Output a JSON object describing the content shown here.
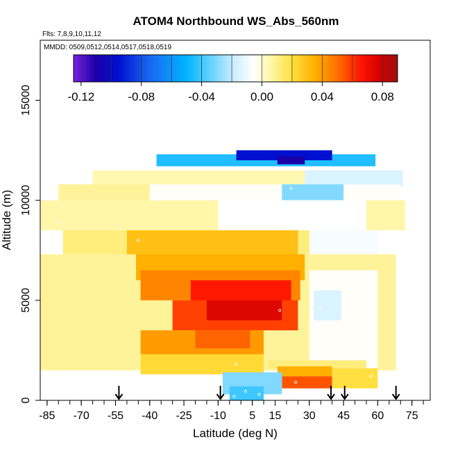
{
  "chart_data": {
    "type": "heatmap",
    "title": "ATOM4 Northbound WS_Abs_560nm",
    "subtitle": "Flts: 7,8,9,10,11,12",
    "annotation": "MMDD: 0509,0512,0514,0517,0518,0519",
    "xlabel": "Latitude (deg N)",
    "ylabel": "Altitude (m)",
    "xlim": [
      -88,
      83
    ],
    "ylim": [
      0,
      18000
    ],
    "x_ticks": [
      -85,
      -70,
      -55,
      -40,
      -25,
      -10,
      5,
      15,
      30,
      45,
      60,
      75
    ],
    "x_minor_step": 5,
    "y_ticks": [
      0,
      5000,
      10000,
      15000
    ],
    "colorbar": {
      "range": [
        -0.125,
        0.09
      ],
      "ticks": [
        -0.12,
        -0.08,
        -0.04,
        0.0,
        0.04,
        0.08
      ],
      "tick_labels": [
        "-0.12",
        "-0.08",
        "-0.04",
        "0.00",
        "0.04",
        "0.08"
      ],
      "stops": [
        [
          -0.125,
          "#7a1fe6"
        ],
        [
          -0.11,
          "#1a00a8"
        ],
        [
          -0.095,
          "#0010d0"
        ],
        [
          -0.075,
          "#1a66f0"
        ],
        [
          -0.05,
          "#00b4ff"
        ],
        [
          -0.035,
          "#5fd0ff"
        ],
        [
          -0.02,
          "#c4ecff"
        ],
        [
          -0.006,
          "#ffffff"
        ],
        [
          0.005,
          "#fff8b0"
        ],
        [
          0.02,
          "#ffe040"
        ],
        [
          0.035,
          "#ffb000"
        ],
        [
          0.05,
          "#ff7000"
        ],
        [
          0.065,
          "#ff1800"
        ],
        [
          0.078,
          "#d40000"
        ],
        [
          0.09,
          "#9a1010"
        ]
      ]
    },
    "sounding_latitudes": [
      -53.5,
      -9,
      39.5,
      45.5,
      68
    ],
    "cells": [
      {
        "x": [
          -37,
          59
        ],
        "y": [
          11700,
          12300
        ],
        "v": -0.045
      },
      {
        "x": [
          -2,
          40
        ],
        "y": [
          12000,
          12500
        ],
        "v": -0.095
      },
      {
        "x": [
          16,
          28
        ],
        "y": [
          11800,
          12200
        ],
        "v": -0.11
      },
      {
        "x": [
          -65,
          71
        ],
        "y": [
          10700,
          11500
        ],
        "v": 0.005
      },
      {
        "x": [
          28,
          71
        ],
        "y": [
          10700,
          11500
        ],
        "v": -0.015
      },
      {
        "x": [
          -80,
          -40
        ],
        "y": [
          10000,
          10800
        ],
        "v": 0.008
      },
      {
        "x": [
          -40,
          70
        ],
        "y": [
          10000,
          10800
        ],
        "v": -0.005
      },
      {
        "x": [
          18,
          45
        ],
        "y": [
          10000,
          10800
        ],
        "v": -0.03
      },
      {
        "x": [
          -88,
          72
        ],
        "y": [
          8500,
          10000
        ],
        "v": 0.006
      },
      {
        "x": [
          -10,
          55
        ],
        "y": [
          8500,
          10000
        ],
        "v": -0.006
      },
      {
        "x": [
          -78,
          60
        ],
        "y": [
          7300,
          8500
        ],
        "v": 0.012
      },
      {
        "x": [
          -50,
          25
        ],
        "y": [
          7300,
          8500
        ],
        "v": 0.03
      },
      {
        "x": [
          30,
          60
        ],
        "y": [
          7300,
          8500
        ],
        "v": -0.008
      },
      {
        "x": [
          -88,
          68
        ],
        "y": [
          1500,
          7300
        ],
        "v": 0.008
      },
      {
        "x": [
          -46,
          28
        ],
        "y": [
          6000,
          7300
        ],
        "v": 0.035
      },
      {
        "x": [
          -44,
          26
        ],
        "y": [
          5000,
          6500
        ],
        "v": 0.045
      },
      {
        "x": [
          -22,
          22
        ],
        "y": [
          4800,
          6000
        ],
        "v": 0.065
      },
      {
        "x": [
          -30,
          25
        ],
        "y": [
          3500,
          5000
        ],
        "v": 0.058
      },
      {
        "x": [
          -15,
          18
        ],
        "y": [
          4000,
          5000
        ],
        "v": 0.075
      },
      {
        "x": [
          -44,
          10
        ],
        "y": [
          2300,
          3500
        ],
        "v": 0.04
      },
      {
        "x": [
          -44,
          10
        ],
        "y": [
          1300,
          2300
        ],
        "v": 0.022
      },
      {
        "x": [
          -20,
          4
        ],
        "y": [
          2600,
          3500
        ],
        "v": 0.052
      },
      {
        "x": [
          30,
          60
        ],
        "y": [
          1500,
          6500
        ],
        "v": -0.005
      },
      {
        "x": [
          32,
          44
        ],
        "y": [
          4000,
          5500
        ],
        "v": -0.015
      },
      {
        "x": [
          12,
          55
        ],
        "y": [
          1600,
          2000
        ],
        "v": 0.012
      },
      {
        "x": [
          16,
          40
        ],
        "y": [
          1200,
          1700
        ],
        "v": 0.035
      },
      {
        "x": [
          18,
          40
        ],
        "y": [
          600,
          1200
        ],
        "v": 0.055
      },
      {
        "x": [
          40,
          60
        ],
        "y": [
          600,
          1600
        ],
        "v": 0.02
      },
      {
        "x": [
          -8,
          18
        ],
        "y": [
          300,
          1400
        ],
        "v": -0.03
      },
      {
        "x": [
          -5,
          10
        ],
        "y": [
          0,
          700
        ],
        "v": -0.04
      }
    ],
    "points": [
      {
        "x": 22,
        "y": 10600
      },
      {
        "x": 14,
        "y": 10400
      },
      {
        "x": 62,
        "y": 8400
      },
      {
        "x": -45,
        "y": 8000
      },
      {
        "x": 30,
        "y": 9600
      },
      {
        "x": -80,
        "y": 8900
      },
      {
        "x": 35,
        "y": 4600
      },
      {
        "x": 17,
        "y": 4500
      },
      {
        "x": -2,
        "y": 1800
      },
      {
        "x": 24,
        "y": 900
      },
      {
        "x": 57,
        "y": 1200
      },
      {
        "x": 2,
        "y": 450
      },
      {
        "x": -3,
        "y": 200
      },
      {
        "x": 8,
        "y": 300
      },
      {
        "x": 27,
        "y": 9800
      }
    ]
  }
}
